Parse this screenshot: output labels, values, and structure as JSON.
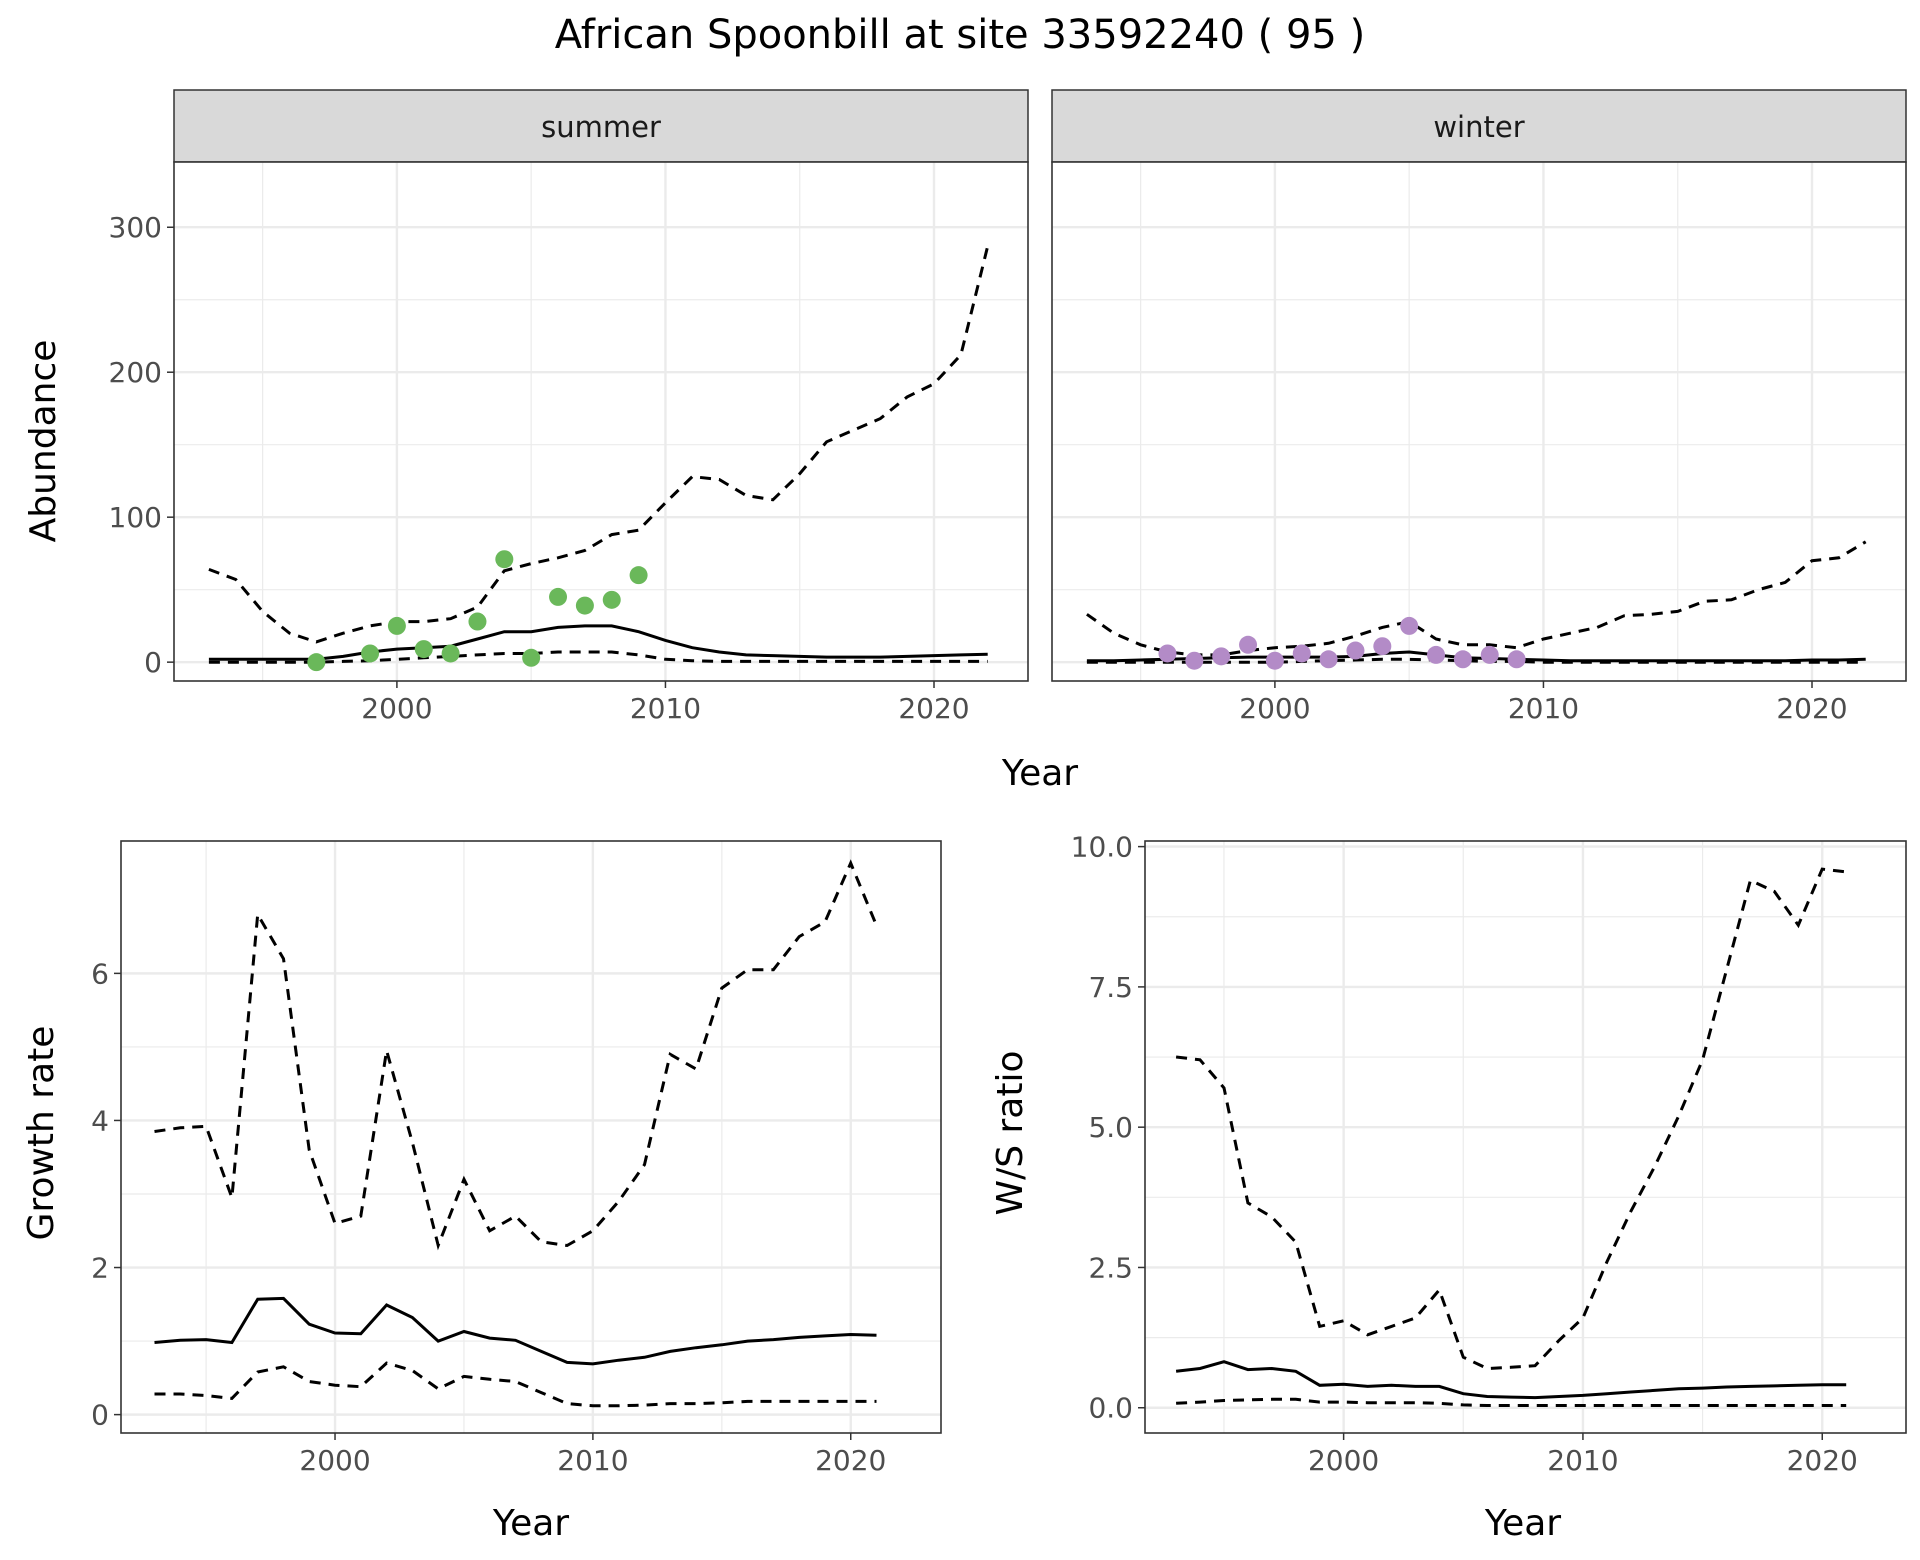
{
  "title": "African Spoonbill at site 33592240 ( 95 )",
  "colors": {
    "summer_points": "#6ab85a",
    "winter_points": "#b38bc7",
    "strip": "#d9d9d9",
    "grid": "#ebebeb",
    "line": "#000000"
  },
  "chart_data": [
    {
      "type": "line",
      "panel": "abundance",
      "facets": [
        "summer",
        "winter"
      ],
      "xlabel": "Year",
      "ylabel": "Abundance",
      "xlim": [
        1991.7,
        2023.5
      ],
      "ylim": [
        -13,
        345
      ],
      "xticks": [
        2000,
        2010,
        2020
      ],
      "yticks": [
        0,
        100,
        200,
        300
      ],
      "grid": true,
      "legend": "none",
      "summer": {
        "x": [
          1993,
          1994,
          1995,
          1996,
          1997,
          1998,
          1999,
          2000,
          2001,
          2002,
          2003,
          2004,
          2005,
          2006,
          2007,
          2008,
          2009,
          2010,
          2011,
          2012,
          2013,
          2014,
          2015,
          2016,
          2017,
          2018,
          2019,
          2020,
          2021,
          2022
        ],
        "mean": [
          2,
          2,
          2,
          2,
          2,
          4,
          7,
          9,
          10,
          11,
          16,
          21,
          21,
          24,
          25,
          25,
          21,
          15,
          10,
          7,
          5,
          4.5,
          4,
          3.5,
          3.5,
          3.5,
          4,
          4.5,
          5,
          5.5
        ],
        "upper": [
          64,
          57,
          35,
          20,
          14,
          20,
          25,
          28,
          28,
          30,
          38,
          63,
          68,
          72,
          77,
          88,
          91,
          110,
          128,
          126,
          115,
          112,
          130,
          152,
          160,
          168,
          183,
          192,
          212,
          287
        ],
        "lower": [
          0,
          0,
          0,
          0,
          0,
          0.5,
          1,
          2,
          3,
          4,
          5,
          6,
          6,
          7,
          7,
          7,
          5,
          2,
          1,
          0.5,
          0.5,
          0.5,
          0.5,
          0.5,
          0.5,
          0.5,
          0.5,
          0.5,
          0.5,
          0.5
        ],
        "obs_x": [
          1997,
          1999,
          2000,
          2001,
          2002,
          2003,
          2004,
          2005,
          2006,
          2007,
          2008,
          2009
        ],
        "obs_y": [
          0,
          6,
          25,
          9,
          6,
          28,
          71,
          3,
          45,
          39,
          43,
          60
        ]
      },
      "winter": {
        "x": [
          1993,
          1994,
          1995,
          1996,
          1997,
          1998,
          1999,
          2000,
          2001,
          2002,
          2003,
          2004,
          2005,
          2006,
          2007,
          2008,
          2009,
          2010,
          2011,
          2012,
          2013,
          2014,
          2015,
          2016,
          2017,
          2018,
          2019,
          2020,
          2021,
          2022
        ],
        "mean": [
          1,
          1,
          1.5,
          2,
          2.5,
          3,
          3.5,
          3.5,
          3.5,
          3.5,
          4,
          6,
          7,
          5,
          3,
          2.5,
          2,
          1.5,
          1,
          1,
          1,
          1,
          1,
          1,
          1,
          1,
          1,
          1.5,
          1.5,
          2
        ],
        "upper": [
          33,
          20,
          12,
          7,
          5,
          5,
          8,
          10,
          11,
          13,
          18,
          24,
          28,
          16,
          12,
          12,
          10,
          16,
          20,
          24,
          32,
          33,
          35,
          42,
          43,
          50,
          55,
          70,
          72,
          83
        ],
        "lower": [
          0,
          0,
          0,
          0,
          0,
          0,
          0,
          0,
          0.5,
          1,
          1.5,
          2,
          2,
          1.5,
          1,
          0.5,
          0.5,
          0,
          0,
          0,
          0,
          0,
          0,
          0,
          0,
          0,
          0,
          0,
          0,
          0
        ],
        "obs_x": [
          1996,
          1997,
          1998,
          1999,
          2000,
          2001,
          2002,
          2003,
          2004,
          2005,
          2006,
          2007,
          2008,
          2009
        ],
        "obs_y": [
          6,
          1,
          4,
          12,
          1,
          6,
          2,
          8,
          11,
          25,
          5,
          2,
          5,
          2
        ]
      }
    },
    {
      "type": "line",
      "panel": "growth",
      "xlabel": "Year",
      "ylabel": "Growth rate",
      "xlim": [
        1991.7,
        2023.5
      ],
      "ylim": [
        -0.25,
        7.8
      ],
      "xticks": [
        2000,
        2010,
        2020
      ],
      "yticks": [
        0,
        2,
        4,
        6
      ],
      "grid": true,
      "x": [
        1993,
        1994,
        1995,
        1996,
        1997,
        1998,
        1999,
        2000,
        2001,
        2002,
        2003,
        2004,
        2005,
        2006,
        2007,
        2008,
        2009,
        2010,
        2011,
        2012,
        2013,
        2014,
        2015,
        2016,
        2017,
        2018,
        2019,
        2020,
        2021
      ],
      "mean": [
        0.98,
        1.01,
        1.02,
        0.98,
        1.57,
        1.58,
        1.23,
        1.11,
        1.1,
        1.49,
        1.32,
        1.0,
        1.13,
        1.04,
        1.01,
        0.86,
        0.71,
        0.69,
        0.74,
        0.78,
        0.86,
        0.91,
        0.95,
        1.0,
        1.02,
        1.05,
        1.07,
        1.09,
        1.08
      ],
      "upper": [
        3.85,
        3.9,
        3.92,
        2.95,
        6.8,
        6.2,
        3.6,
        2.6,
        2.7,
        4.95,
        3.7,
        2.3,
        3.2,
        2.5,
        2.7,
        2.35,
        2.3,
        2.5,
        2.9,
        3.4,
        4.9,
        4.7,
        5.8,
        6.05,
        6.05,
        6.5,
        6.7,
        7.5,
        6.65
      ],
      "lower": [
        0.28,
        0.28,
        0.26,
        0.22,
        0.58,
        0.65,
        0.45,
        0.4,
        0.38,
        0.7,
        0.6,
        0.35,
        0.52,
        0.48,
        0.45,
        0.3,
        0.15,
        0.12,
        0.12,
        0.13,
        0.15,
        0.15,
        0.16,
        0.18,
        0.18,
        0.18,
        0.18,
        0.18,
        0.18
      ]
    },
    {
      "type": "line",
      "panel": "ratio",
      "xlabel": "Year",
      "ylabel": "W/S ratio",
      "xlim": [
        1991.7,
        2023.5
      ],
      "ylim": [
        -0.45,
        10.1
      ],
      "xticks": [
        2000,
        2010,
        2020
      ],
      "yticks": [
        "0.0",
        "2.5",
        "5.0",
        "7.5",
        "10.0"
      ],
      "grid": true,
      "x": [
        1993,
        1994,
        1995,
        1996,
        1997,
        1998,
        1999,
        2000,
        2001,
        2002,
        2003,
        2004,
        2005,
        2006,
        2007,
        2008,
        2009,
        2010,
        2011,
        2012,
        2013,
        2014,
        2015,
        2016,
        2017,
        2018,
        2019,
        2020,
        2021
      ],
      "mean": [
        0.65,
        0.7,
        0.82,
        0.68,
        0.7,
        0.65,
        0.4,
        0.42,
        0.38,
        0.4,
        0.38,
        0.38,
        0.25,
        0.2,
        0.19,
        0.18,
        0.2,
        0.22,
        0.25,
        0.28,
        0.31,
        0.34,
        0.35,
        0.37,
        0.38,
        0.39,
        0.4,
        0.41,
        0.41
      ],
      "upper": [
        6.25,
        6.2,
        5.7,
        3.65,
        3.4,
        2.95,
        1.45,
        1.55,
        1.3,
        1.45,
        1.6,
        2.1,
        0.9,
        0.7,
        0.72,
        0.75,
        1.2,
        1.6,
        2.6,
        3.5,
        4.3,
        5.2,
        6.2,
        7.8,
        9.4,
        9.2,
        8.6,
        9.6,
        9.55
      ],
      "lower": [
        0.08,
        0.1,
        0.13,
        0.14,
        0.15,
        0.15,
        0.1,
        0.1,
        0.09,
        0.09,
        0.09,
        0.08,
        0.05,
        0.04,
        0.04,
        0.04,
        0.04,
        0.04,
        0.04,
        0.04,
        0.04,
        0.04,
        0.04,
        0.04,
        0.04,
        0.04,
        0.04,
        0.04,
        0.04
      ]
    }
  ]
}
